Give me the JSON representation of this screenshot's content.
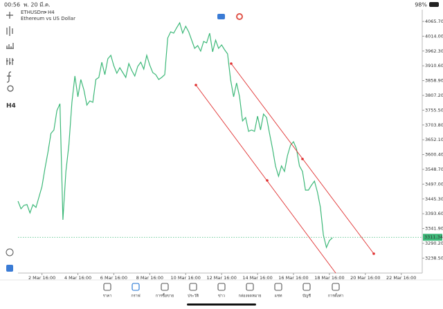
{
  "status_bar": {
    "time": "00:56",
    "date": "พ. 20 มี.ค.",
    "battery": "98%"
  },
  "chart_data": {
    "type": "line",
    "symbol": "ETHUSDm",
    "timeframe": "H4",
    "description": "Ethereum vs US Dollar",
    "color": "#3cb878",
    "values": [
      3437.5,
      3411,
      3423,
      3425.5,
      3396.5,
      3425.5,
      3415.7,
      3452,
      3488.3,
      3551.1,
      3609.1,
      3674.3,
      3686.4,
      3754,
      3778.2,
      3372.3,
      3541.4,
      3633.2,
      3783,
      3874.8,
      3802.4,
      3862.8,
      3826.5,
      3773.4,
      3787.9,
      3783,
      3862.8,
      3870,
      3923.2,
      3879.7,
      3935.2,
      3947.3,
      3911.1,
      3884.5,
      3903.8,
      3886.9,
      3870,
      3918.3,
      3894.2,
      3874.8,
      3908.7,
      3923.2,
      3899,
      3947.3,
      3913.5,
      3886.9,
      3879.7,
      3862.8,
      3870,
      3879.7,
      4007.7,
      4029.5,
      4024.6,
      4044,
      4060.9,
      4024.6,
      4048.8,
      4029.5,
      4000.5,
      3971.5,
      3981.1,
      3961.8,
      3995.6,
      3990.8,
      4024.6,
      3959.4,
      4000.5,
      3971.5,
      3983.6,
      3966.6,
      3952.1,
      3862.8,
      3802.4,
      3850.7,
      3802.4,
      3717.8,
      3729.9,
      3681.6,
      3686.4,
      3681.6,
      3734.7,
      3686.4,
      3742,
      3729.9,
      3674.3,
      3621.2,
      3560.8,
      3524.5,
      3560.8,
      3541.4,
      3597,
      3633.2,
      3645.3,
      3621.2,
      3560.8,
      3541.4,
      3476.2,
      3476.2,
      3493.1,
      3507.6,
      3468.9,
      3415.7,
      3319.2,
      3275.7,
      3299.8,
      3309.5
    ],
    "xlim": [
      0,
      135
    ],
    "xticks": [
      {
        "value": 8,
        "label": "2 Mar 16:00"
      },
      {
        "value": 20,
        "label": "4 Mar 16:00"
      },
      {
        "value": 32,
        "label": "6 Mar 16:00"
      },
      {
        "value": 44,
        "label": "8 Mar 16:00"
      },
      {
        "value": 56,
        "label": "10 Mar 16:00"
      },
      {
        "value": 68,
        "label": "12 Mar 16:00"
      },
      {
        "value": 80,
        "label": "14 Mar 16:00"
      },
      {
        "value": 92,
        "label": "16 Mar 16:00"
      },
      {
        "value": 104,
        "label": "18 Mar 16:00"
      },
      {
        "value": 116,
        "label": "20 Mar 16:00"
      },
      {
        "value": 128,
        "label": "22 Mar 16:00"
      }
    ],
    "ylim": [
      3186.3,
      4097.1
    ],
    "yticks": [
      {
        "value": 4065.7,
        "label": "4065.70"
      },
      {
        "value": 4014,
        "label": "4014.00"
      },
      {
        "value": 3962.3,
        "label": "3962.30"
      },
      {
        "value": 3910.6,
        "label": "3910.60"
      },
      {
        "value": 3858.9,
        "label": "3858.90"
      },
      {
        "value": 3807.2,
        "label": "3807.20"
      },
      {
        "value": 3755.5,
        "label": "3755.50"
      },
      {
        "value": 3703.8,
        "label": "3703.80"
      },
      {
        "value": 3652.1,
        "label": "3652.10"
      },
      {
        "value": 3600.4,
        "label": "3600.40"
      },
      {
        "value": 3548.7,
        "label": "3548.70"
      },
      {
        "value": 3497,
        "label": "3497.00"
      },
      {
        "value": 3445.3,
        "label": "3445.30"
      },
      {
        "value": 3393.6,
        "label": "3393.60"
      },
      {
        "value": 3341.9,
        "label": "3341.90"
      },
      {
        "value": 3290.2,
        "label": "3290.20"
      },
      {
        "value": 3238.5,
        "label": "3238.50"
      }
    ],
    "current_price": 3311.34
  },
  "nav": {
    "items": [
      "ราคา",
      "กราฟ",
      "การซื้อขาย",
      "ประวัติ",
      "ข่าว",
      "กล่องจดหมาย",
      "แชท",
      "บัญชี",
      "การตั้งค่า"
    ]
  }
}
